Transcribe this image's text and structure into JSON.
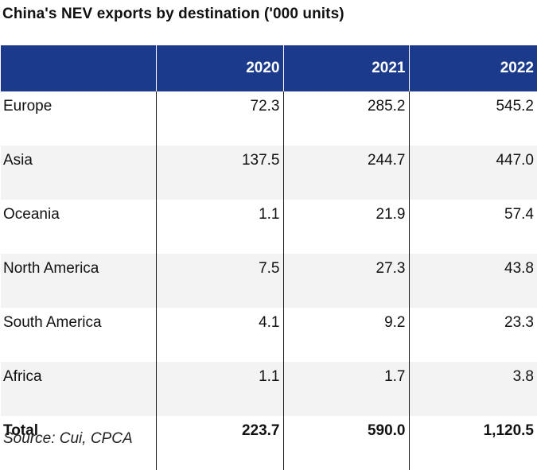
{
  "chart_data": {
    "type": "table",
    "title": "China's NEV exports by destination ('000 units)",
    "columns": [
      "",
      "2020",
      "2021",
      "2022"
    ],
    "rows": [
      {
        "label": "Europe",
        "values": [
          "72.3",
          "285.2",
          "545.2"
        ]
      },
      {
        "label": "Asia",
        "values": [
          "137.5",
          "244.7",
          "447.0"
        ]
      },
      {
        "label": "Oceania",
        "values": [
          "1.1",
          "21.9",
          "57.4"
        ]
      },
      {
        "label": "North America",
        "values": [
          "7.5",
          "27.3",
          "43.8"
        ]
      },
      {
        "label": "South America",
        "values": [
          "4.1",
          "9.2",
          "23.3"
        ]
      },
      {
        "label": "Africa",
        "values": [
          "1.1",
          "1.7",
          "3.8"
        ]
      },
      {
        "label": "Total",
        "values": [
          "223.7",
          "590.0",
          "1,120.5"
        ]
      }
    ],
    "source": "Source: Cui, CPCA"
  },
  "colors": {
    "header_bg": "#1b3a8c",
    "header_text": "#ffffff",
    "alt_row_bg": "#f3f3f3"
  }
}
